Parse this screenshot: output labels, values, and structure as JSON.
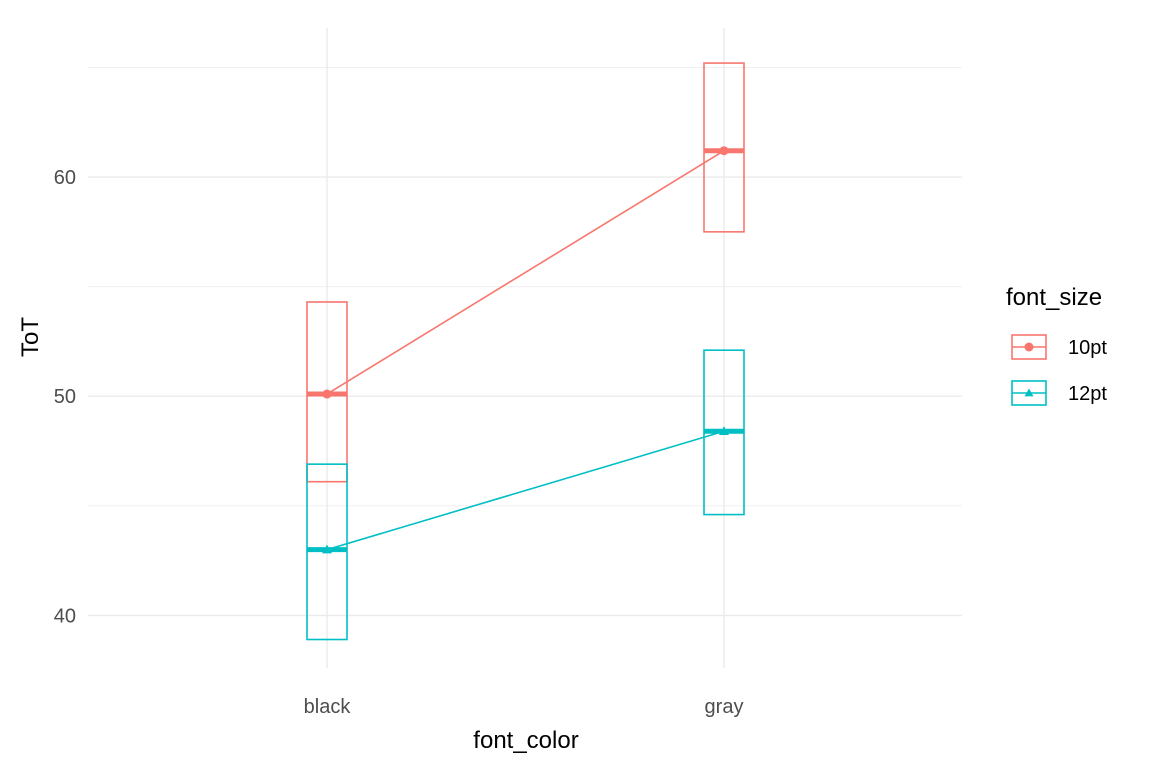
{
  "chart_data": {
    "type": "crossbar",
    "x_label": "font_color",
    "y_label": "ToT",
    "categories": [
      "black",
      "gray"
    ],
    "y_ticks": [
      40,
      50,
      60
    ],
    "y_range": [
      37.6,
      66.8
    ],
    "grid": true,
    "legend": {
      "title": "font_size",
      "placement": "right"
    },
    "series": [
      {
        "name": "10pt",
        "color": "#F8766D",
        "marker": "circle",
        "means": [
          50.1,
          61.2
        ],
        "lower": [
          46.1,
          57.5
        ],
        "upper": [
          54.3,
          65.2
        ]
      },
      {
        "name": "12pt",
        "color": "#00BFC4",
        "marker": "triangle",
        "means": [
          43.0,
          48.4
        ],
        "lower": [
          38.9,
          44.6
        ],
        "upper": [
          46.9,
          52.1
        ]
      }
    ]
  }
}
